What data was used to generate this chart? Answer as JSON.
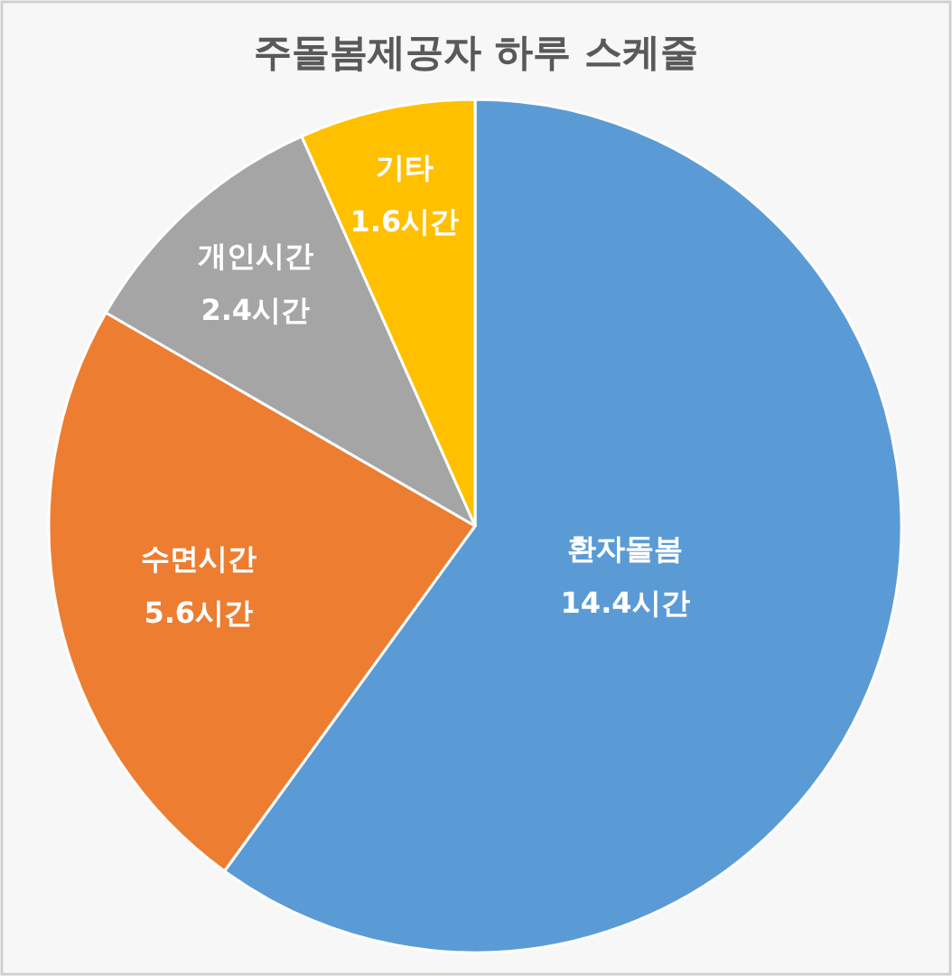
{
  "chart_data": {
    "type": "pie",
    "title": "주돌봄제공자 하루 스케줄",
    "categories": [
      "환자돌봄",
      "수면시간",
      "개인시간",
      "기타"
    ],
    "values": [
      14.4,
      5.6,
      2.4,
      1.6
    ],
    "value_labels": [
      "14.4시간",
      "5.6시간",
      "2.4시간",
      "1.6시간"
    ],
    "colors": [
      "#5b9bd5",
      "#ed7d31",
      "#a5a5a5",
      "#ffc000"
    ],
    "legend": false
  }
}
